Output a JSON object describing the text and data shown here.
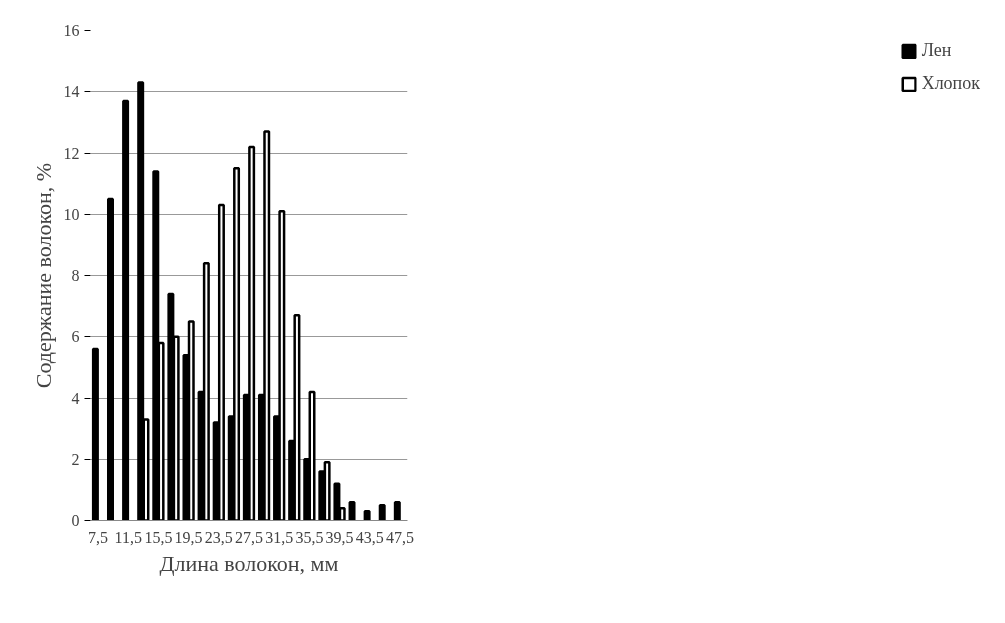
{
  "chart_data": {
    "type": "bar",
    "xlabel": "Длина волокон, мм",
    "ylabel": "Содержание волокон, %",
    "categories": [
      "7,5",
      null,
      "11,5",
      null,
      "15,5",
      null,
      "19,5",
      null,
      "23,5",
      null,
      "27,5",
      null,
      "31,5",
      null,
      "35,5",
      null,
      "39,5",
      null,
      "43,5",
      null,
      "47,5"
    ],
    "series": [
      {
        "name": "Лен",
        "color": "#000000",
        "values": [
          5.6,
          10.5,
          13.7,
          14.3,
          11.4,
          7.4,
          5.4,
          4.2,
          3.2,
          3.4,
          4.1,
          4.1,
          3.4,
          2.6,
          2.0,
          1.6,
          1.2,
          0.6,
          0.3,
          0.5,
          0.6
        ]
      },
      {
        "name": "Хлопок",
        "color": "#ffffff",
        "values": [
          null,
          null,
          null,
          3.3,
          5.8,
          6.0,
          6.5,
          8.4,
          10.3,
          11.5,
          12.2,
          12.7,
          10.1,
          6.7,
          4.2,
          1.9,
          0.4,
          null,
          null,
          null,
          null
        ]
      }
    ],
    "ylim": [
      0,
      16
    ],
    "yticks": [
      0,
      2,
      4,
      6,
      8,
      10,
      12,
      14,
      16
    ],
    "grid": "y",
    "legend": "right"
  }
}
